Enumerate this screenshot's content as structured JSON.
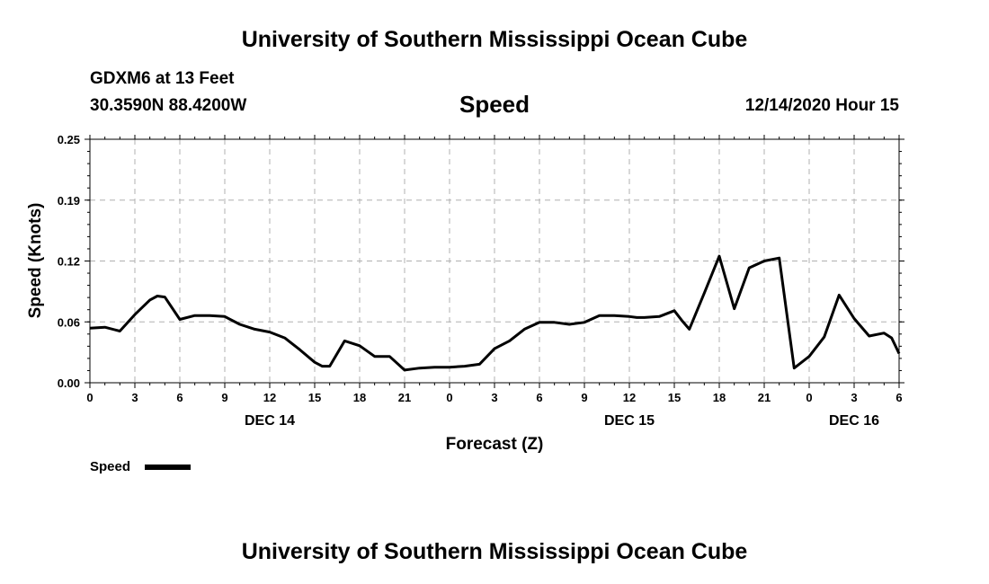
{
  "header": {
    "title": "University of Southern Mississippi Ocean Cube",
    "station": "GDXM6 at 13 Feet",
    "coords": "30.3590N 88.4200W",
    "variable": "Speed",
    "datetime": "12/14/2020 Hour 15"
  },
  "footer": {
    "title": "University of Southern Mississippi Ocean Cube"
  },
  "legend": {
    "label": "Speed",
    "color": "#000000"
  },
  "chart_data": {
    "type": "line",
    "title": "Speed",
    "xlabel": "Forecast (Z)",
    "ylabel": "Speed (Knots)",
    "xlim": [
      0,
      54
    ],
    "ylim": [
      0,
      0.25
    ],
    "yticks": [
      "0.00",
      "0.06",
      "0.12",
      "0.19",
      "0.25"
    ],
    "ytick_values": [
      0,
      0.0625,
      0.125,
      0.1875,
      0.25
    ],
    "xticks": [
      "0",
      "3",
      "6",
      "9",
      "12",
      "15",
      "18",
      "21",
      "0",
      "3",
      "6",
      "9",
      "12",
      "15",
      "18",
      "21",
      "0",
      "3",
      "6"
    ],
    "date_labels": [
      {
        "label": "DEC 14",
        "x": 12
      },
      {
        "label": "DEC 15",
        "x": 36
      },
      {
        "label": "DEC 16",
        "x": 51
      }
    ],
    "grid": true,
    "series": [
      {
        "name": "Speed",
        "x": [
          0,
          1,
          2,
          3,
          4,
          4.5,
          5,
          6,
          7,
          8,
          9,
          10,
          11,
          12,
          13,
          14,
          15,
          15.5,
          16,
          17,
          18,
          19,
          20,
          21,
          22,
          23,
          24,
          25,
          26,
          27,
          28,
          29,
          30,
          31,
          32,
          33,
          34,
          35,
          36,
          36.5,
          37,
          38,
          39,
          39.5,
          40,
          41,
          42,
          43,
          44,
          45,
          46,
          47,
          48,
          49,
          50,
          51,
          52,
          53,
          53.5,
          54
        ],
        "values": [
          0.056,
          0.057,
          0.053,
          0.07,
          0.085,
          0.089,
          0.088,
          0.065,
          0.069,
          0.069,
          0.068,
          0.06,
          0.055,
          0.052,
          0.046,
          0.034,
          0.021,
          0.017,
          0.017,
          0.043,
          0.038,
          0.027,
          0.027,
          0.013,
          0.015,
          0.016,
          0.016,
          0.017,
          0.019,
          0.035,
          0.043,
          0.055,
          0.062,
          0.062,
          0.06,
          0.062,
          0.069,
          0.069,
          0.068,
          0.067,
          0.067,
          0.068,
          0.074,
          0.064,
          0.055,
          0.092,
          0.13,
          0.076,
          0.118,
          0.125,
          0.128,
          0.015,
          0.027,
          0.047,
          0.09,
          0.066,
          0.048,
          0.051,
          0.046,
          0.03
        ]
      }
    ]
  }
}
